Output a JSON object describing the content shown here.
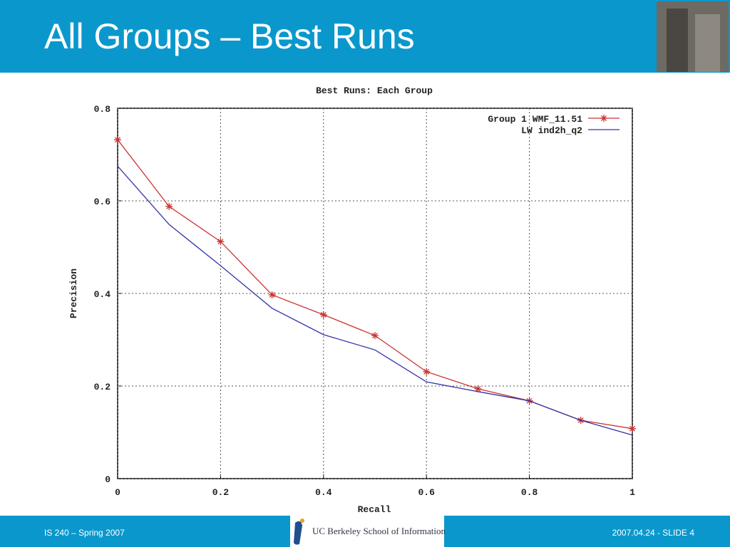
{
  "slide": {
    "title": "All Groups – Best Runs",
    "footer_left": "IS 240 – Spring 2007",
    "footer_logo": "UC Berkeley School of Information",
    "footer_right": "2007.04.24 - SLIDE 4"
  },
  "chart_data": {
    "type": "line",
    "title": "Best Runs: Each Group",
    "xlabel": "Recall",
    "ylabel": "Precision",
    "x": [
      0,
      0.1,
      0.2,
      0.3,
      0.4,
      0.5,
      0.6,
      0.7,
      0.8,
      0.9,
      1
    ],
    "series": [
      {
        "name": "Group 1 WMF_11.51",
        "color": "#cc3333",
        "marker": "star",
        "values": [
          0.732,
          0.588,
          0.512,
          0.397,
          0.354,
          0.309,
          0.231,
          0.194,
          0.168,
          0.126,
          0.108
        ]
      },
      {
        "name": "LW ind2h_q2",
        "color": "#3333aa",
        "values": [
          0.675,
          0.549,
          0.46,
          0.368,
          0.311,
          0.278,
          0.209,
          0.188,
          0.168,
          0.126,
          0.094
        ]
      }
    ],
    "xlim": [
      0,
      1
    ],
    "ylim": [
      0,
      0.8
    ],
    "xticks": [
      0,
      0.2,
      0.4,
      0.6,
      0.8,
      1
    ],
    "yticks": [
      0,
      0.2,
      0.4,
      0.6,
      0.8
    ],
    "grid": true,
    "legend": "upper right"
  }
}
